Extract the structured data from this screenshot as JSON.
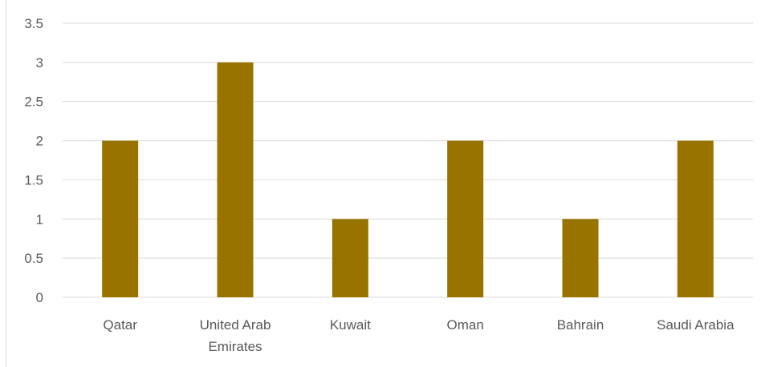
{
  "chart_data": {
    "type": "bar",
    "title": "",
    "xlabel": "",
    "ylabel": "",
    "categories": [
      "Qatar",
      "United Arab Emirates",
      "Kuwait",
      "Oman",
      "Bahrain",
      "Saudi Arabia"
    ],
    "category_label_lines": [
      [
        "Qatar"
      ],
      [
        "United Arab",
        "Emirates"
      ],
      [
        "Kuwait"
      ],
      [
        "Oman"
      ],
      [
        "Bahrain"
      ],
      [
        "Saudi Arabia"
      ]
    ],
    "values": [
      2,
      3,
      1,
      2,
      1,
      2
    ],
    "ylim": [
      0,
      3.5
    ],
    "yticks": [
      "0",
      "0.5",
      "1",
      "1.5",
      "2",
      "2.5",
      "3",
      "3.5"
    ],
    "grid": true,
    "legend": "none",
    "bar_color": "#997300",
    "grid_color": "#d9d9d9"
  }
}
